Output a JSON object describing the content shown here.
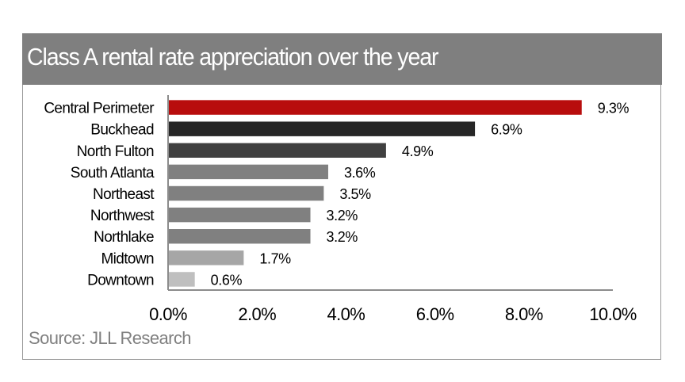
{
  "chart_data": {
    "type": "bar",
    "orientation": "horizontal",
    "title": "Class A rental rate appreciation over the year",
    "categories": [
      "Central Perimeter",
      "Buckhead",
      "North Fulton",
      "South Atlanta",
      "Northeast",
      "Northwest",
      "Northlake",
      "Midtown",
      "Downtown"
    ],
    "values": [
      9.3,
      6.9,
      4.9,
      3.6,
      3.5,
      3.2,
      3.2,
      1.7,
      0.6
    ],
    "data_labels": [
      "9.3%",
      "6.9%",
      "4.9%",
      "3.6%",
      "3.5%",
      "3.2%",
      "3.2%",
      "1.7%",
      "0.6%"
    ],
    "bar_colors": [
      "#b80d0d",
      "#262626",
      "#404040",
      "#808080",
      "#808080",
      "#808080",
      "#808080",
      "#a6a6a6",
      "#bfbfbf"
    ],
    "xlabel": "",
    "ylabel": "",
    "xlim": [
      0,
      10
    ],
    "x_ticks": [
      0,
      2,
      4,
      6,
      8,
      10
    ],
    "x_tick_labels": [
      "0.0%",
      "2.0%",
      "4.0%",
      "6.0%",
      "8.0%",
      "10.0%"
    ],
    "grid": false,
    "legend": "none",
    "source": "Source: JLL Research"
  },
  "colors": {
    "title_bar": "#7f7f7f",
    "title_text": "#ffffff",
    "source_text": "#808080",
    "axis": "#8c8c8c"
  }
}
